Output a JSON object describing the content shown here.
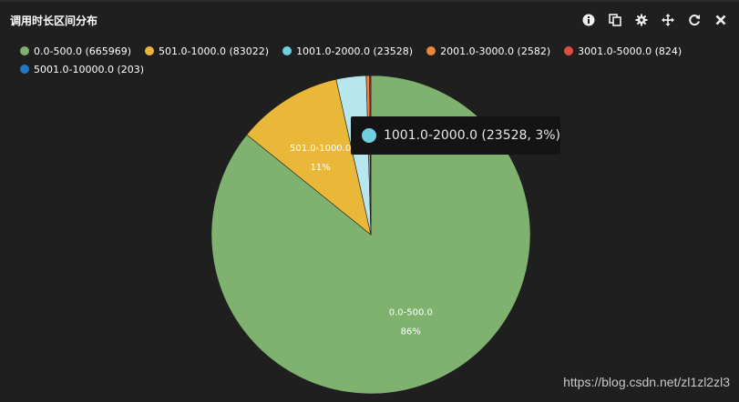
{
  "panel": {
    "title": "调用时长区间分布",
    "tools": [
      {
        "icon": "info-icon"
      },
      {
        "icon": "copy-icon"
      },
      {
        "icon": "gear-icon"
      },
      {
        "icon": "move-icon"
      },
      {
        "icon": "refresh-icon"
      },
      {
        "icon": "close-icon"
      }
    ]
  },
  "legend": {
    "rows": [
      [
        {
          "label": "0.0-500.0 (665969)",
          "color": "#7fb26f"
        },
        {
          "label": "501.0-1000.0 (83022)",
          "color": "#eab839"
        },
        {
          "label": "1001.0-2000.0 (23528)",
          "color": "#6ed0e0"
        },
        {
          "label": "2001.0-3000.0 (2582)",
          "color": "#ef843c"
        },
        {
          "label": "3001.0-5000.0 (824)",
          "color": "#e24d42"
        }
      ],
      [
        {
          "label": "5001.0-10000.0 (203)",
          "color": "#1f78c1"
        }
      ]
    ]
  },
  "chart_data": {
    "type": "pie",
    "title": "调用时长区间分布",
    "slices": [
      {
        "name": "0.0-500.0",
        "value": 665969,
        "color": "#7fb26f",
        "label": "0.0-500.0",
        "pct_label": "86%"
      },
      {
        "name": "501.0-1000.0",
        "value": 83022,
        "color": "#eab839",
        "label": "501.0-1000.0",
        "pct_label": "11%"
      },
      {
        "name": "1001.0-2000.0",
        "value": 23528,
        "color": "#6ed0e0",
        "label": "",
        "pct_label": ""
      },
      {
        "name": "2001.0-3000.0",
        "value": 2582,
        "color": "#ef843c",
        "label": "",
        "pct_label": ""
      },
      {
        "name": "3001.0-5000.0",
        "value": 824,
        "color": "#e24d42",
        "label": "",
        "pct_label": ""
      },
      {
        "name": "5001.0-10000.0",
        "value": 203,
        "color": "#1f78c1",
        "label": "",
        "pct_label": ""
      }
    ],
    "legend_position": "top-left",
    "highlighted": "1001.0-2000.0"
  },
  "tooltip": {
    "text": "1001.0-2000.0 (23528, 3%)",
    "color": "#6ed0e0"
  },
  "watermark": "https://blog.csdn.net/zl1zl2zl3"
}
